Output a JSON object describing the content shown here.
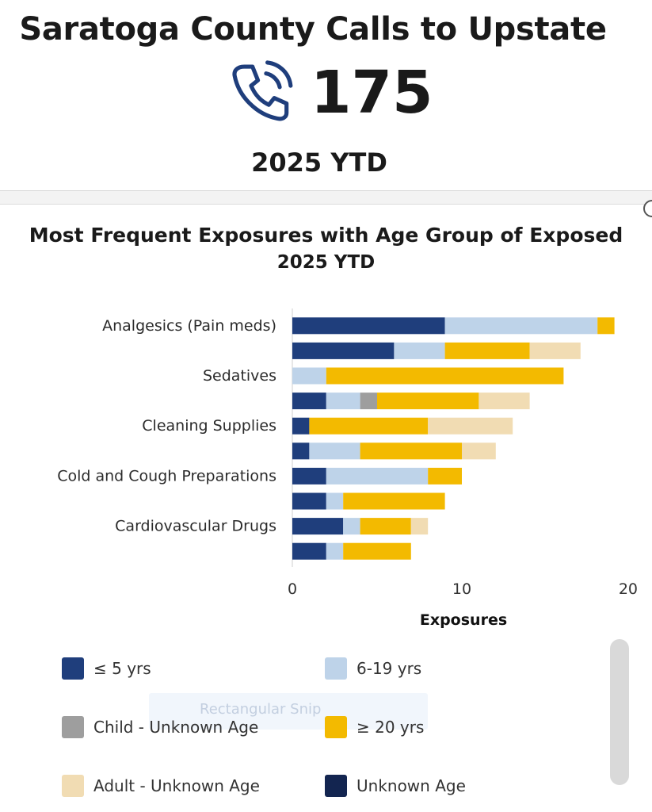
{
  "kpi": {
    "title": "Saratoga County Calls to Upstate",
    "value": "175",
    "period": "2025 YTD",
    "icon": "phone-icon"
  },
  "overlay": {
    "ghost_label": "Rectangular Snip"
  },
  "colors": {
    "le5": "#1f3e7c",
    "age6_19": "#bed3e9",
    "child_unknown": "#9e9e9e",
    "ge20": "#f3ba00",
    "adult_unknown": "#f1dcb3",
    "unknown_age": "#132550"
  },
  "chart_data": {
    "type": "bar",
    "orientation": "horizontal",
    "stacked": true,
    "title": "Most Frequent Exposures with Age Group of Exposed",
    "subtitle": "2025 YTD",
    "xlabel": "Exposures",
    "xlim": [
      0,
      20
    ],
    "xticks": [
      0,
      10,
      20
    ],
    "categories": [
      "Analgesics (Pain meds)",
      "",
      "Sedatives",
      "",
      "Cleaning Supplies",
      "",
      "Cold and Cough Preparations",
      "",
      "Cardiovascular Drugs",
      ""
    ],
    "series": [
      {
        "name": "≤ 5 yrs",
        "color_key": "le5",
        "values": [
          9,
          6,
          0,
          2,
          1,
          1,
          2,
          2,
          3,
          2
        ]
      },
      {
        "name": "6-19 yrs",
        "color_key": "age6_19",
        "values": [
          9,
          3,
          2,
          2,
          0,
          3,
          6,
          1,
          1,
          1
        ]
      },
      {
        "name": "Child - Unknown Age",
        "color_key": "child_unknown",
        "values": [
          0,
          0,
          0,
          1,
          0,
          0,
          0,
          0,
          0,
          0
        ]
      },
      {
        "name": "≥ 20 yrs",
        "color_key": "ge20",
        "values": [
          1,
          5,
          14,
          6,
          7,
          6,
          2,
          6,
          3,
          4
        ]
      },
      {
        "name": "Adult - Unknown Age",
        "color_key": "adult_unknown",
        "values": [
          0,
          3,
          0,
          3,
          5,
          2,
          0,
          0,
          1,
          0
        ]
      },
      {
        "name": "Unknown Age",
        "color_key": "unknown_age",
        "values": [
          0,
          0,
          0,
          0,
          0,
          0,
          0,
          0,
          0,
          0
        ]
      }
    ]
  }
}
